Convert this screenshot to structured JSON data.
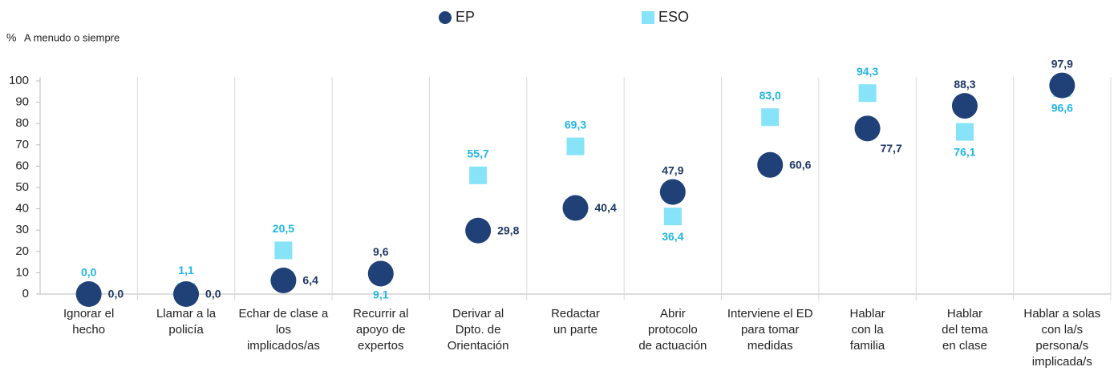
{
  "chart_data": {
    "type": "scatter",
    "y_label": "%",
    "subtitle": "A menudo o siempre",
    "categories": [
      [
        "Ignorar el",
        "hecho"
      ],
      [
        "Llamar a la",
        "policía"
      ],
      [
        "Echar de clase a",
        "los",
        "implicados/as"
      ],
      [
        "Recurrir al",
        "apoyo de",
        "expertos"
      ],
      [
        "Derivar al",
        "Dpto. de",
        "Orientación"
      ],
      [
        "Redactar",
        "un parte"
      ],
      [
        "Abrir",
        "protocolo",
        "de actuación"
      ],
      [
        "Interviene el ED",
        "para tomar",
        "medidas"
      ],
      [
        "Hablar",
        "con la",
        "familia"
      ],
      [
        "Hablar",
        "del tema",
        "en clase"
      ],
      [
        "Hablar a solas",
        "con la/s",
        "persona/s",
        "implicada/s"
      ]
    ],
    "series": [
      {
        "name": "EP",
        "color": "#1f4178",
        "label_color": "#1f3864",
        "marker": "circle",
        "values": [
          0.0,
          0.0,
          6.4,
          9.6,
          29.8,
          40.4,
          47.9,
          60.6,
          77.7,
          88.3,
          97.9
        ],
        "value_labels": [
          "0,0",
          "0,0",
          "6,4",
          "9,6",
          "29,8",
          "40,4",
          "47,9",
          "60,6",
          "77,7",
          "88,3",
          "97,9"
        ]
      },
      {
        "name": "ESO",
        "color": "#86e3f8",
        "label_color": "#1fb6e4",
        "marker": "square",
        "values": [
          0.0,
          1.1,
          20.5,
          9.1,
          55.7,
          69.3,
          36.4,
          83.0,
          94.3,
          76.1,
          96.6
        ],
        "value_labels": [
          "0,0",
          "1,1",
          "20,5",
          "9,1",
          "55,7",
          "69,3",
          "36,4",
          "83,0",
          "94,3",
          "76,1",
          "96,6"
        ]
      }
    ],
    "ylim": [
      0,
      100
    ],
    "yticks": [
      0,
      10,
      20,
      30,
      40,
      50,
      60,
      70,
      80,
      90,
      100
    ],
    "legend": "top"
  }
}
